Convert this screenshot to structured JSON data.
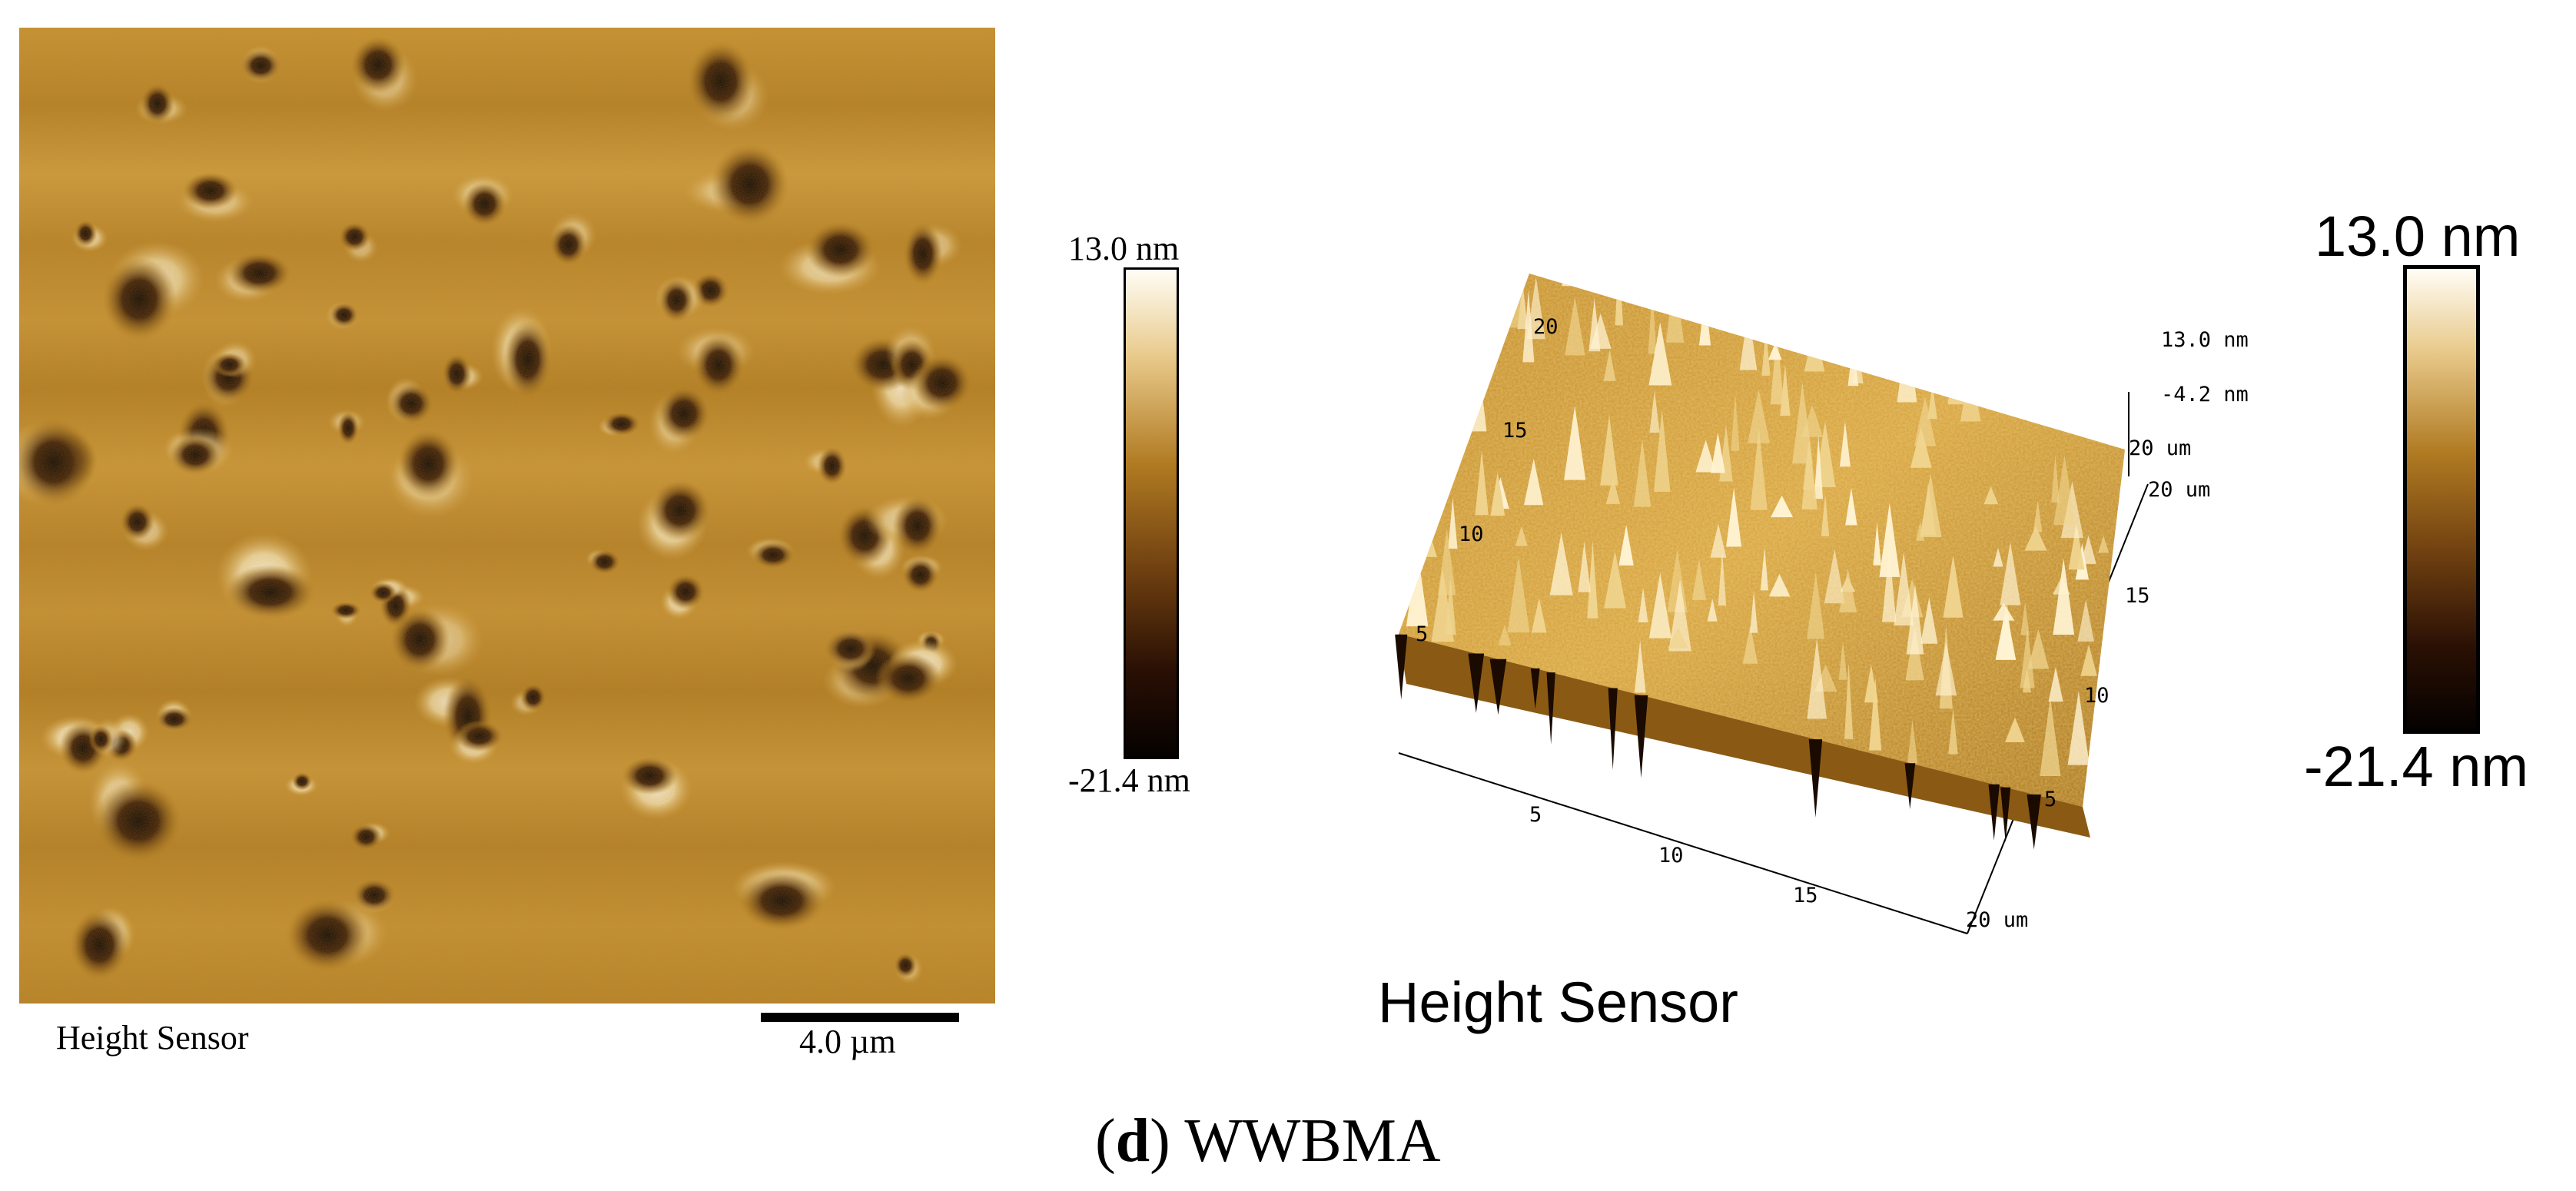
{
  "left_panel": {
    "image_name": "afm-height-2d-map",
    "caption": "Height Sensor",
    "scale_bar_label": "4.0 µm",
    "colorbar": {
      "max_label": "13.0 nm",
      "min_label": "-21.4 nm"
    }
  },
  "right_panel": {
    "image_name": "afm-height-3d-surface",
    "caption": "Height Sensor",
    "z_axis": {
      "top_label": "13.0 nm",
      "mid_label": "-4.2 nm"
    },
    "corner_labels": {
      "back_y": "20 um",
      "back_x": "20 um",
      "front_x": "20 um"
    },
    "left_axis_ticks": [
      "20",
      "15",
      "10",
      "5"
    ],
    "front_axis_ticks": [
      "5",
      "10",
      "15"
    ],
    "right_axis_ticks": [
      "15",
      "10",
      "5"
    ],
    "colorbar": {
      "max_label": "13.0 nm",
      "min_label": "-21.4 nm"
    }
  },
  "figure_label": {
    "letter": "d",
    "open": "(",
    "close": ")",
    "name": "WWBMA"
  },
  "colors": {
    "afm_dark": "#0d0400",
    "afm_mid": "#b8821e",
    "afm_light": "#fff8e8",
    "afm_base": "#c2892a"
  }
}
